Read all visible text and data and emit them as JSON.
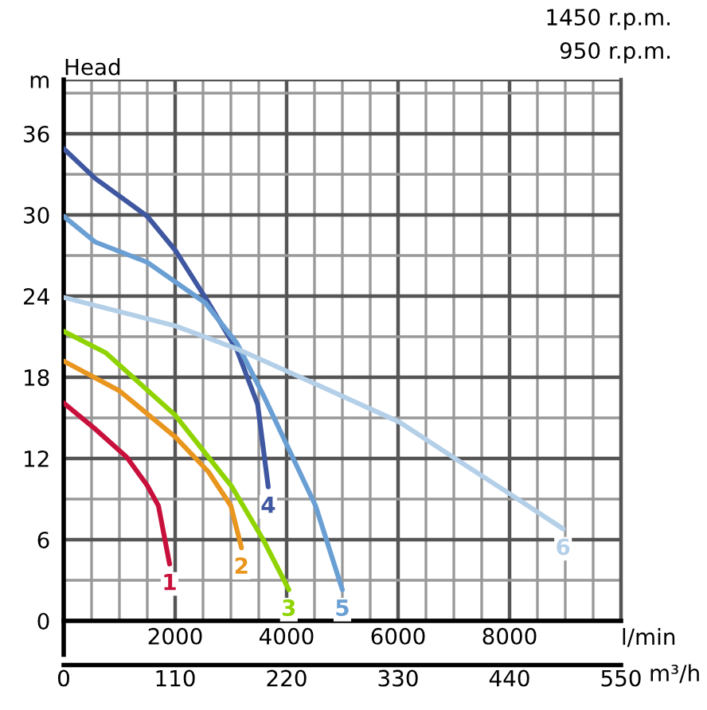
{
  "chart_data": {
    "type": "line",
    "title": "1450 r.p.m.",
    "subtitle": "950 r.p.m.",
    "ylabel": "Head",
    "xlabel": "l/min",
    "x2label": "m³/h",
    "xlim": [
      0,
      10000
    ],
    "xticks": [
      2000,
      4000,
      6000,
      8000
    ],
    "x2lim": [
      0,
      550
    ],
    "x2ticks": [
      0,
      110,
      220,
      330,
      440,
      550
    ],
    "ylim": [
      0,
      40
    ],
    "yticks": [
      0,
      6,
      12,
      18,
      24,
      30,
      36,
      {
        "value": 40,
        "label": "m"
      }
    ],
    "grid": true,
    "legend": false,
    "marker": "none",
    "line_style": "solid",
    "series": [
      {
        "name": "1",
        "color": "#c8103c",
        "x": [
          0,
          560,
          1130,
          1500,
          1700,
          1900
        ],
        "values": [
          16.1,
          14.2,
          12.1,
          10,
          8.5,
          4.2
        ]
      },
      {
        "name": "2",
        "color": "#e8961e",
        "x": [
          0,
          1000,
          2000,
          2600,
          3000,
          3190
        ],
        "values": [
          19.2,
          17.0,
          13.6,
          11,
          8.5,
          5.4
        ]
      },
      {
        "name": "3",
        "color": "#8fd400",
        "x": [
          0,
          760,
          2000,
          3020,
          3580,
          4040
        ],
        "values": [
          21.4,
          19.8,
          15.2,
          9.9,
          6,
          2.3
        ]
      },
      {
        "name": "4",
        "color": "#3f57a0",
        "x": [
          0,
          565,
          1500,
          2000,
          2540,
          3110,
          3480,
          3670
        ],
        "values": [
          34.9,
          32.7,
          29.9,
          27.4,
          23.9,
          20,
          16,
          9.9
        ]
      },
      {
        "name": "5",
        "color": "#6a9fd4",
        "x": [
          0,
          565,
          1500,
          2540,
          3110,
          3580,
          4520,
          5000
        ],
        "values": [
          29.9,
          28,
          26.5,
          23.5,
          20.5,
          16.7,
          8.5,
          2.3
        ]
      },
      {
        "name": "6",
        "color": "#b4cfe8",
        "x": [
          0,
          2000,
          3110,
          4520,
          6020,
          7060,
          8000,
          8960
        ],
        "values": [
          23.9,
          21.8,
          20.1,
          17.5,
          14.7,
          11.9,
          9.4,
          6.8
        ]
      }
    ]
  }
}
